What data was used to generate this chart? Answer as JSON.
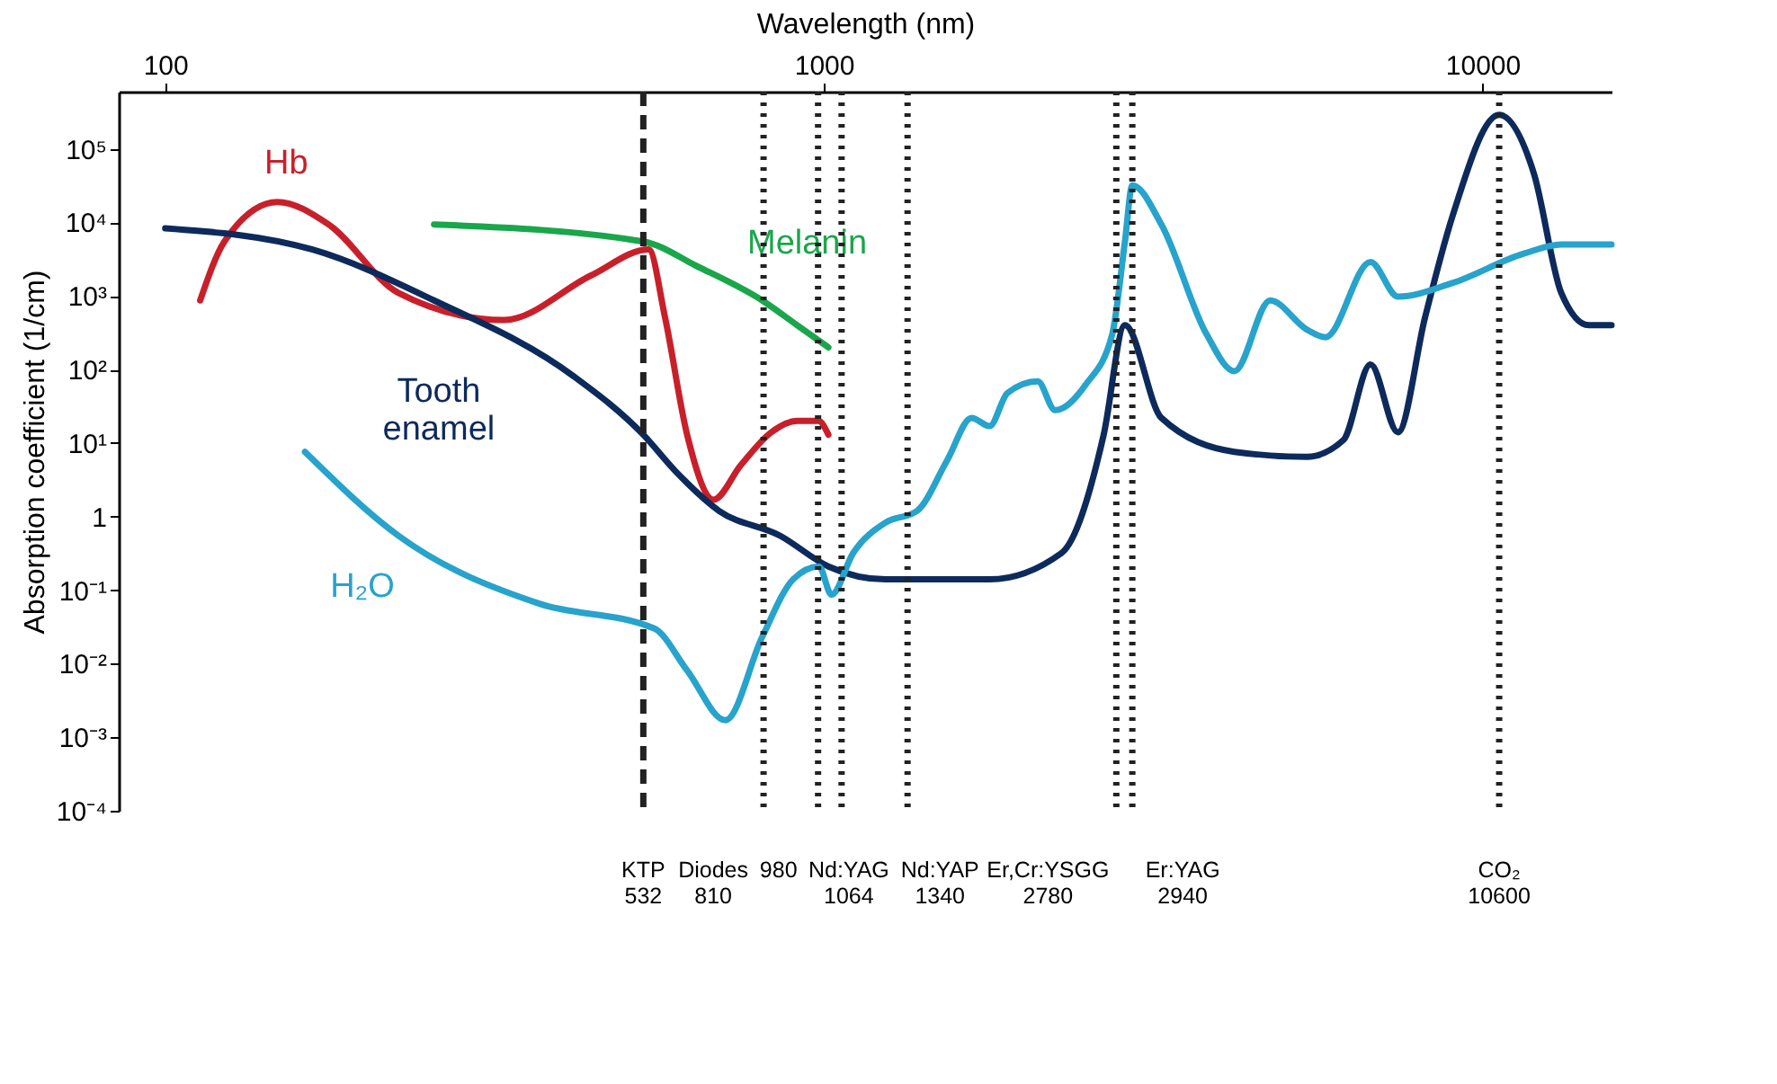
{
  "chart_data": {
    "type": "line",
    "xlabel": "Wavelength (nm)",
    "ylabel": "Absorption coefficient (1/cm)",
    "log": "xy",
    "xlim": [
      85,
      15700
    ],
    "xticks": [
      100,
      1000,
      10000
    ],
    "ylim": [
      0.0001,
      600000
    ],
    "yticks": [
      {
        "value": 0.0001,
        "label": "10⁻⁴"
      },
      {
        "value": 0.001,
        "label": "10⁻³"
      },
      {
        "value": 0.01,
        "label": "10⁻²"
      },
      {
        "value": 0.1,
        "label": "10⁻¹"
      },
      1,
      {
        "value": 10,
        "label": "10¹"
      },
      {
        "value": 100,
        "label": "10²"
      },
      {
        "value": 1000,
        "label": "10³"
      },
      {
        "value": 10000,
        "label": "10⁴"
      },
      {
        "value": 100000,
        "label": "10⁵"
      }
    ],
    "marker": "none",
    "line_style": "solid",
    "series": [
      {
        "name": "Hb",
        "color": "#c8202a",
        "x": [
          113,
          123,
          148,
          177,
          226,
          327,
          443,
          542,
          574,
          620,
          680,
          748,
          832,
          911,
          981,
          1016
        ],
        "values": [
          870,
          5500,
          19000,
          9400,
          1100,
          470,
          1900,
          4300,
          510,
          13,
          1.7,
          5,
          14,
          20,
          20,
          13
        ]
      },
      {
        "name": "Melanin",
        "color": "#1aa64a",
        "x": [
          256,
          532,
          644,
          806,
          911,
          1016
        ],
        "values": [
          9400,
          5500,
          2500,
          870,
          400,
          200
        ]
      },
      {
        "name": "Tooth enamel",
        "color": "#0d2a5c",
        "x": [
          100,
          167,
          256,
          417,
          532,
          596,
          693,
          858,
          1016,
          1241,
          1785,
          2296,
          2660,
          2865,
          3254,
          4200,
          5410,
          6150,
          6760,
          7440,
          8180,
          9000,
          10600,
          11970,
          13170,
          14500,
          15700
        ],
        "values": [
          8300,
          4300,
          870,
          81,
          13,
          4.1,
          1.2,
          0.55,
          0.21,
          0.14,
          0.14,
          0.32,
          13,
          400,
          22,
          7.6,
          6.5,
          11,
          117,
          14,
          510,
          12000,
          290000,
          46000,
          1100,
          400,
          400
        ]
      },
      {
        "name": "H₂O",
        "color": "#27a3cc",
        "x": [
          163,
          226,
          369,
          553,
          620,
          709,
          806,
          898,
          983,
          1027,
          1108,
          1241,
          1386,
          1540,
          1676,
          1785,
          1900,
          2112,
          2245,
          2500,
          2740,
          2865,
          2940,
          3254,
          3812,
          4200,
          4760,
          5410,
          5775,
          6760,
          7440,
          9000,
          11580,
          13170,
          15700
        ],
        "values": [
          7.6,
          0.55,
          0.066,
          0.03,
          0.0081,
          0.0017,
          0.023,
          0.14,
          0.21,
          0.087,
          0.32,
          0.83,
          1.2,
          5.9,
          22,
          17,
          48,
          69,
          28,
          63,
          300,
          5500,
          32000,
          9400,
          300,
          95,
          870,
          350,
          275,
          2900,
          980,
          1500,
          3800,
          5000,
          5000
        ]
      }
    ],
    "ref_lines": [
      {
        "axis": "x",
        "value": 532,
        "label": "KTP\n532",
        "color": "#222222",
        "line_style": "dashed"
      },
      {
        "axis": "x",
        "value": 810,
        "label": "Diodes\n810",
        "color": "#222222",
        "line_style": "dotted"
      },
      {
        "axis": "x",
        "value": 980,
        "label": "980",
        "color": "#222222",
        "line_style": "dotted"
      },
      {
        "axis": "x",
        "value": 1064,
        "label": "Nd:YAG\n1064",
        "color": "#222222",
        "line_style": "dotted"
      },
      {
        "axis": "x",
        "value": 1340,
        "label": "Nd:YAP\n1340",
        "color": "#222222",
        "line_style": "dotted"
      },
      {
        "axis": "x",
        "value": 2780,
        "label": "Er,Cr:YSGG\n2780",
        "color": "#222222",
        "line_style": "dotted"
      },
      {
        "axis": "x",
        "value": 2940,
        "label": "Er:YAG\n2940",
        "color": "#222222",
        "line_style": "dotted"
      },
      {
        "axis": "x",
        "value": 10600,
        "label": "CO₂\n10600",
        "color": "#222222",
        "line_style": "dotted"
      }
    ]
  }
}
